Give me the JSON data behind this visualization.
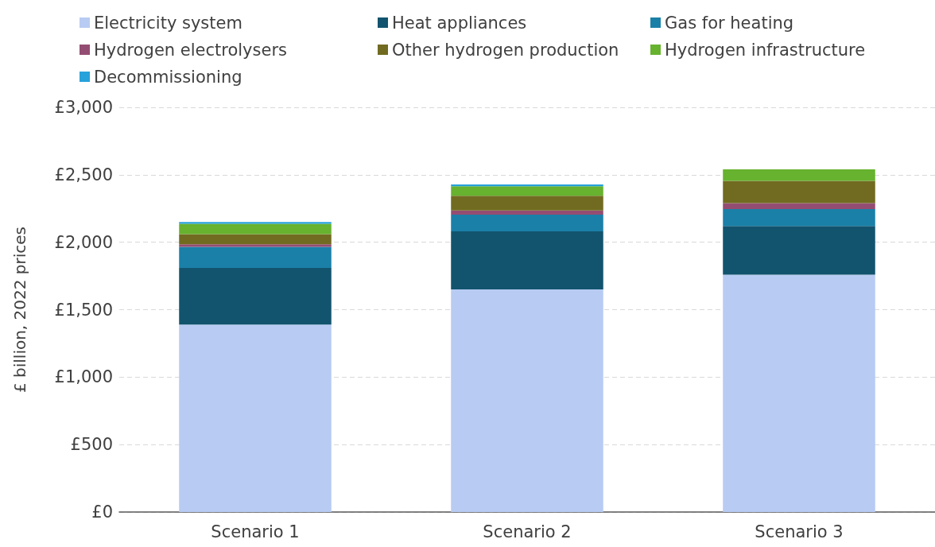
{
  "chart_data": {
    "type": "bar",
    "stacked": true,
    "ylabel": "£ billion, 2022 prices",
    "categories": [
      "Scenario 1",
      "Scenario 2",
      "Scenario 3"
    ],
    "series": [
      {
        "name": "Electricity system",
        "color": "#b8cbf2",
        "values": [
          1390,
          1650,
          1760
        ]
      },
      {
        "name": "Heat appliances",
        "color": "#12546e",
        "values": [
          420,
          430,
          360
        ]
      },
      {
        "name": "Gas for heating",
        "color": "#1a80a8",
        "values": [
          155,
          125,
          125
        ]
      },
      {
        "name": "Hydrogen electrolysers",
        "color": "#944d72",
        "values": [
          20,
          30,
          45
        ]
      },
      {
        "name": "Other hydrogen production",
        "color": "#716b21",
        "values": [
          75,
          110,
          165
        ]
      },
      {
        "name": "Hydrogen infrastructure",
        "color": "#67b22f",
        "values": [
          77,
          70,
          85
        ]
      },
      {
        "name": "Decommissioning",
        "color": "#27a2db",
        "values": [
          13,
          13,
          0
        ]
      }
    ],
    "ylim": [
      0,
      3000
    ],
    "yticks": [
      {
        "value": 0,
        "label": "£0"
      },
      {
        "value": 500,
        "label": "£500"
      },
      {
        "value": 1000,
        "label": "£1,000"
      },
      {
        "value": 1500,
        "label": "£1,500"
      },
      {
        "value": 2000,
        "label": "£2,000"
      },
      {
        "value": 2500,
        "label": "£2,500"
      },
      {
        "value": 3000,
        "label": "£3,000"
      }
    ],
    "grid": "y",
    "legend": "top"
  }
}
